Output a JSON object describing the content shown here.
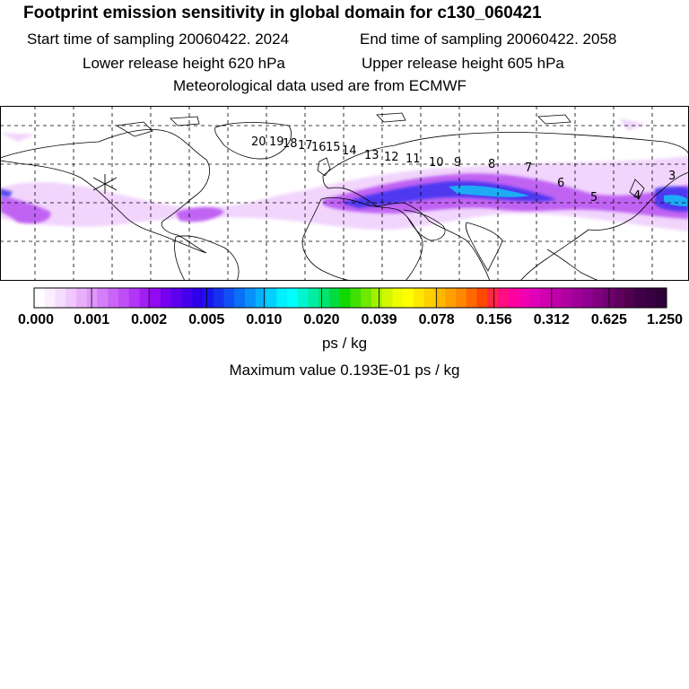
{
  "header": {
    "title": "Footprint emission sensitivity in global domain for c130_060421",
    "start_label": "Start time of sampling 20060422.  2024",
    "end_label": "End time of sampling 20060422.  2058",
    "lower_label": "Lower release height  620 hPa",
    "upper_label": "Upper release height  605 hPa",
    "met_label": "Meteorological data used are from ECMWF"
  },
  "map": {
    "trajectory_labels": [
      "20",
      "19",
      "18",
      "17",
      "16",
      "15",
      "14",
      "13",
      "12",
      "11",
      "10",
      "9",
      "8",
      "7",
      "6",
      "5",
      "4",
      "3"
    ],
    "release_marker": "release-point-star"
  },
  "colorbar": {
    "tick_labels": [
      "0.000",
      "0.001",
      "0.002",
      "0.005",
      "0.010",
      "0.020",
      "0.039",
      "0.078",
      "0.156",
      "0.312",
      "0.625",
      "1.250"
    ],
    "colors": [
      "#ffffff",
      "#fbeefe",
      "#f6dcfd",
      "#f0c8fc",
      "#e8b0fb",
      "#df97fa",
      "#d57ef9",
      "#ca65f8",
      "#bf4ef7",
      "#b236f6",
      "#a21ef5",
      "#920af2",
      "#7400f0",
      "#5c00ee",
      "#4400ec",
      "#2c00ea",
      "#1a14ec",
      "#1530f0",
      "#1050f4",
      "#0b70f8",
      "#0890fb",
      "#05b0fd",
      "#03d0fe",
      "#00f0ff",
      "#00ffff",
      "#00f5d0",
      "#00eca0",
      "#00e470",
      "#00dc40",
      "#10d800",
      "#40e000",
      "#70e800",
      "#a0f000",
      "#d0f800",
      "#f0fc00",
      "#ffff00",
      "#ffe800",
      "#ffd000",
      "#ffb800",
      "#ffa000",
      "#ff8800",
      "#ff6800",
      "#ff4800",
      "#ff2840",
      "#ff1080",
      "#ff00a0",
      "#f000b0",
      "#e000b8",
      "#d000b0",
      "#c000a8",
      "#b000a0",
      "#a00098",
      "#900090",
      "#800080",
      "#700070",
      "#600060",
      "#500050",
      "#400048",
      "#380040",
      "#300038"
    ],
    "units": "ps / kg",
    "max_label": "Maximum value  0.193E-01 ps / kg"
  }
}
